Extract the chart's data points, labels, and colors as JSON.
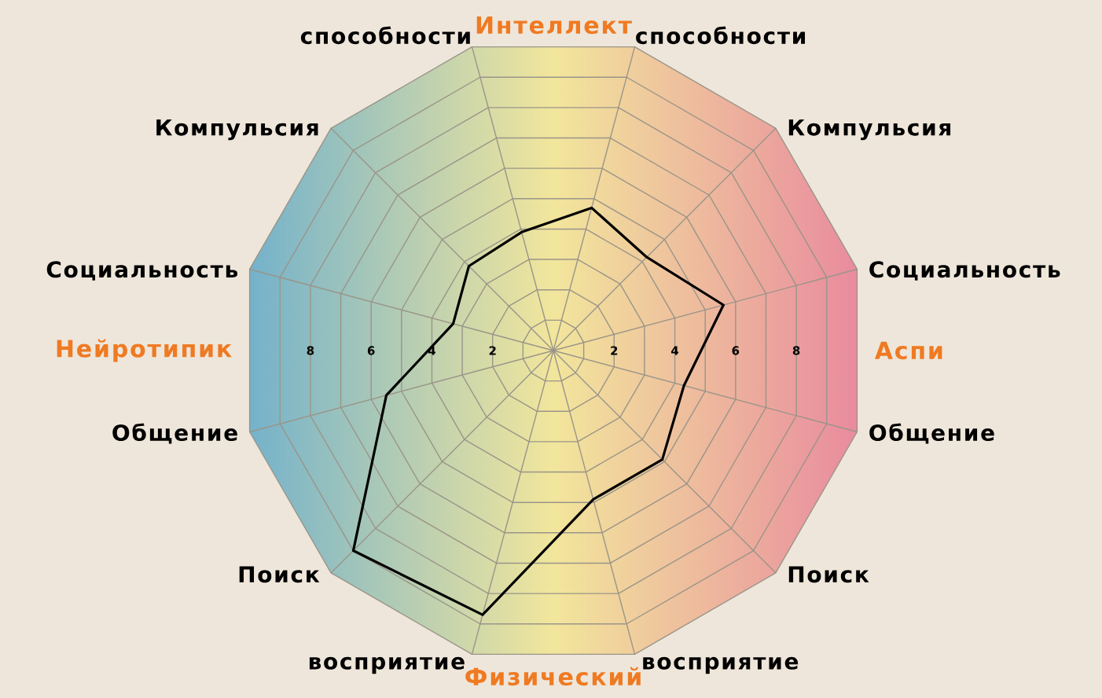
{
  "chart_data": {
    "type": "radar",
    "categories": [
      "способности",
      "Компульсия",
      "Социальность",
      "Общение",
      "Поиск",
      "восприятие",
      "восприятие",
      "Поиск",
      "Общение",
      "Социальность",
      "Компульсия",
      "способности"
    ],
    "series": [
      {
        "color": "#000000",
        "values": [
          4.7,
          4.2,
          5.6,
          4.3,
          4.9,
          4.9,
          8.7,
          9.0,
          5.5,
          3.3,
          3.8,
          3.9
        ]
      }
    ],
    "ylim": [
      0,
      10
    ],
    "yticks": [
      8,
      6,
      4,
      2,
      2,
      4,
      6,
      8
    ],
    "grid": true,
    "line_style": "solid",
    "annotations": [
      "Интеллект",
      "Аспи",
      "Физический",
      "Нейротипик"
    ]
  }
}
